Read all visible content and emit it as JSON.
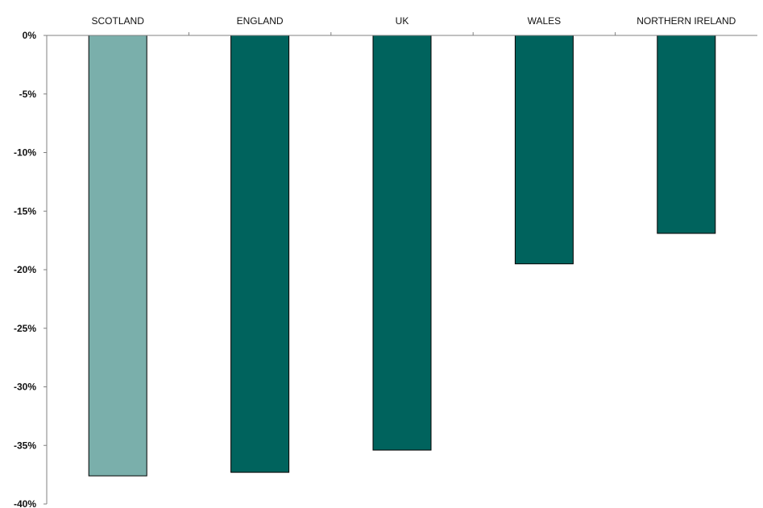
{
  "chart_data": {
    "type": "bar",
    "title": "",
    "xlabel": "",
    "ylabel": "",
    "categories": [
      "SCOTLAND",
      "ENGLAND",
      "UK",
      "WALES",
      "NORTHERN IRELAND"
    ],
    "values": [
      -37.6,
      -37.3,
      -35.4,
      -19.5,
      -16.9
    ],
    "ylim": [
      -40,
      0
    ],
    "yticks": [
      0,
      -5,
      -10,
      -15,
      -20,
      -25,
      -30,
      -35,
      -40
    ],
    "ytick_labels": [
      "0%",
      "-5%",
      "-10%",
      "-15%",
      "-20%",
      "-25%",
      "-30%",
      "-35%",
      "-40%"
    ],
    "xaxis_position": "top",
    "grid": false,
    "legend": "none",
    "colors": {
      "highlight": "#7aafab",
      "default": "#00635d",
      "outline": "#000000",
      "axis": "#808080"
    },
    "highlight_category": "SCOTLAND"
  }
}
